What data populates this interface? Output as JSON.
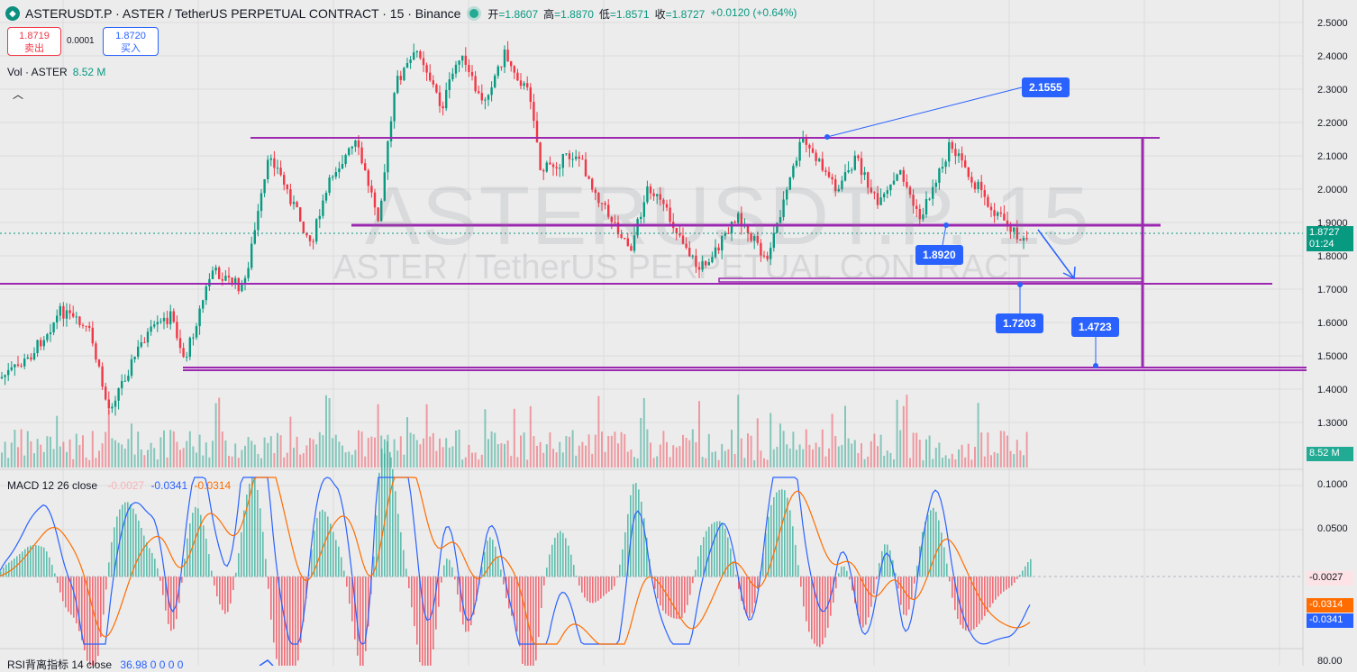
{
  "header": {
    "symbol_title": "ASTERUSDT.P · ASTER / TetherUS PERPETUAL CONTRACT · 15 · Binance",
    "ohlc": [
      {
        "label": "开",
        "value": "=1.8607"
      },
      {
        "label": "高",
        "value": "=1.8870"
      },
      {
        "label": "低",
        "value": "=1.8571"
      },
      {
        "label": "收",
        "value": "=1.8727"
      }
    ],
    "change": "+0.0120 (+0.64%)"
  },
  "trade": {
    "sell_price": "1.8719",
    "sell_label": "卖出",
    "spread": "0.0001",
    "buy_price": "1.8720",
    "buy_label": "买入"
  },
  "volume": {
    "label": "Vol · ASTER",
    "value": "8.52 M",
    "axis_value": "8.52 M"
  },
  "macd": {
    "label": "MACD 12 26 close",
    "hist": "-0.0027",
    "macd": "-0.0341",
    "signal": "-0.0314"
  },
  "rsi": {
    "label": "RSI背离指标 14 close",
    "value": "36.98  0  0  0  0",
    "axis_top": "80.00"
  },
  "watermark": {
    "line1": "ASTERUSDT.P, 15",
    "line2": "ASTER / TetherUS PERPETUAL CONTRACT"
  },
  "price_axis": [
    "2.5000",
    "2.4000",
    "2.3000",
    "2.2000",
    "2.1000",
    "2.0000",
    "1.9000",
    "1.8000",
    "1.7000",
    "1.6000",
    "1.5000",
    "1.4000",
    "1.3000"
  ],
  "macd_axis": [
    "0.1000",
    "0.0500"
  ],
  "last_price": {
    "value": "1.8727",
    "countdown": "01:24"
  },
  "annotations": {
    "callout_top": "2.1555",
    "callout_mid": "1.8920",
    "callout_low": "1.7203",
    "callout_target": "1.4723"
  },
  "colors": {
    "up": "#089981",
    "down": "#f23645",
    "purple": "#9c27b0",
    "blue": "#2962ff",
    "orange": "#ff6d00"
  },
  "chart_data": {
    "type": "candlestick",
    "price_range": [
      1.25,
      2.52
    ],
    "key_levels": [
      2.1555,
      1.892,
      1.7203,
      1.4723
    ],
    "last_close": 1.8727
  }
}
